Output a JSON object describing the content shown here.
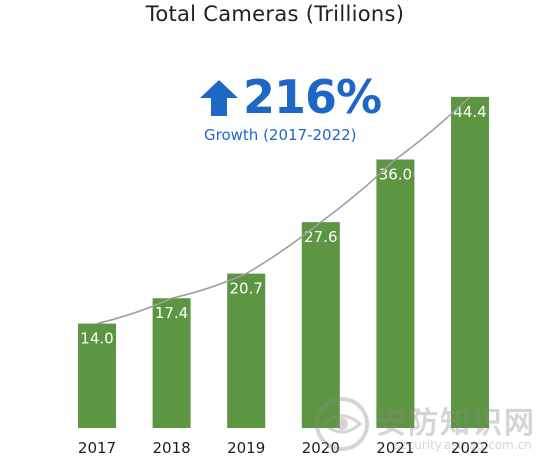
{
  "chart_data": {
    "type": "bar",
    "title": "Total Cameras (Trillions)",
    "categories": [
      "2017",
      "2018",
      "2019",
      "2020",
      "2021",
      "2022"
    ],
    "values": [
      14.0,
      17.4,
      20.7,
      27.6,
      36.0,
      44.4
    ],
    "value_labels": [
      "14.0",
      "17.4",
      "20.7",
      "27.6",
      "36.0",
      "44.4"
    ],
    "ylim": [
      0,
      48
    ],
    "grid": false,
    "trend_line": true,
    "colors": {
      "bar": "#5d9643",
      "trend": "#9e9e9e",
      "accent": "#1e67c6"
    }
  },
  "growth": {
    "icon": "arrow-up-icon",
    "value": "216%",
    "caption": "Growth (2017-2022)"
  },
  "watermark": {
    "icon": "eye-logo-icon",
    "text": "安防知识网",
    "url": "security.asmag.com.cn"
  }
}
